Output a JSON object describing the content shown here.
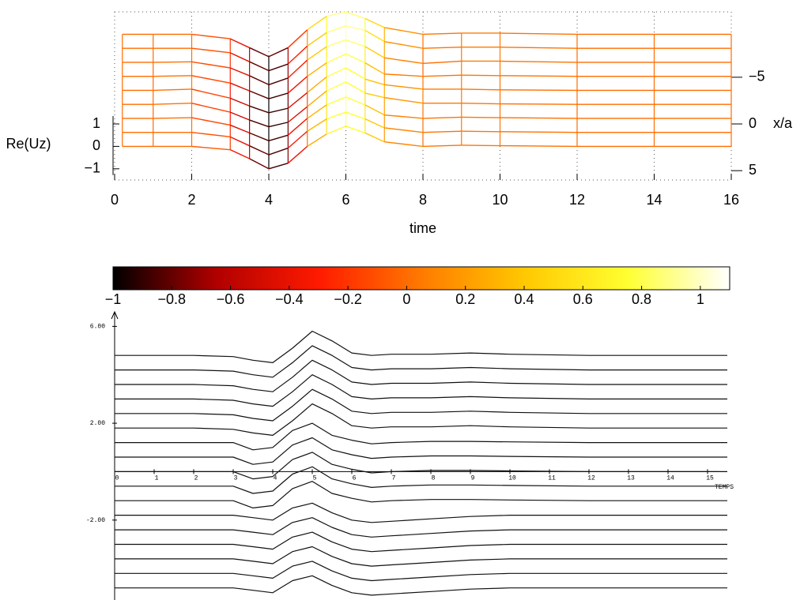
{
  "chart_data": [
    {
      "type": "waterfall",
      "ylabel": "Re(Uz)",
      "xlabel": "time",
      "y2label": "x/a",
      "x": [
        0.2,
        1,
        2,
        3,
        3.5,
        4,
        4.5,
        5,
        5.5,
        6,
        6.5,
        7,
        8,
        9,
        10,
        12,
        14,
        16
      ],
      "series": [
        {
          "xa": -7,
          "values": [
            0,
            0,
            0,
            -0.2,
            -0.6,
            -1.0,
            -0.6,
            0.2,
            0.8,
            1.0,
            0.7,
            0.3,
            0,
            0.05,
            0.05,
            0,
            0,
            0
          ]
        },
        {
          "xa": -5.5,
          "values": [
            0,
            0,
            0,
            -0.2,
            -0.6,
            -1.0,
            -0.7,
            0.1,
            0.7,
            1.0,
            0.8,
            0.3,
            0,
            0.05,
            0.05,
            0,
            0,
            0
          ]
        },
        {
          "xa": -4,
          "values": [
            0,
            0,
            0.02,
            -0.25,
            -0.6,
            -1.0,
            -0.7,
            0.1,
            0.7,
            1.0,
            0.7,
            0.2,
            -0.05,
            0.05,
            0.05,
            0,
            0,
            0
          ]
        },
        {
          "xa": -2.5,
          "values": [
            0,
            0,
            0.03,
            -0.3,
            -0.65,
            -1.0,
            -0.75,
            0,
            0.6,
            1.0,
            0.6,
            0.1,
            0,
            0.05,
            0.03,
            0,
            0,
            0
          ]
        },
        {
          "xa": -1,
          "values": [
            0,
            0,
            0.05,
            -0.35,
            -0.7,
            -1.0,
            -0.8,
            -0.1,
            0.6,
            1.0,
            0.5,
            0.25,
            0.05,
            0.05,
            0.02,
            0,
            0,
            0
          ]
        },
        {
          "xa": 0.5,
          "values": [
            0,
            0,
            0.05,
            -0.35,
            -0.7,
            -1.0,
            -0.8,
            -0.1,
            0.6,
            1.0,
            0.5,
            0.3,
            0.05,
            0.05,
            0.02,
            0,
            0,
            0
          ]
        },
        {
          "xa": 2,
          "values": [
            0,
            0,
            0.03,
            -0.3,
            -0.65,
            -1.0,
            -0.75,
            0,
            0.6,
            0.95,
            0.6,
            0.15,
            0,
            0.05,
            0.03,
            0,
            0,
            0
          ]
        },
        {
          "xa": 3.5,
          "values": [
            0,
            0,
            0,
            -0.2,
            -0.6,
            -1.0,
            -0.7,
            0.05,
            0.6,
            0.9,
            0.6,
            0.2,
            0,
            0.05,
            0.03,
            0,
            0,
            0
          ]
        },
        {
          "xa": 5,
          "values": [
            0,
            0,
            0,
            -0.15,
            -0.55,
            -1.0,
            -0.75,
            0,
            0.55,
            0.9,
            0.6,
            0.2,
            0,
            0.05,
            0.03,
            0,
            0,
            0
          ]
        }
      ],
      "xlim": [
        0,
        16
      ],
      "xticks": [
        0,
        2,
        4,
        6,
        8,
        10,
        12,
        14,
        16
      ],
      "ylim": [
        -1.5,
        6
      ],
      "yticks": [
        1,
        0,
        {
          "value": -1,
          "label": "−1"
        }
      ],
      "y2lim": [
        6,
        -12
      ],
      "y2ticks": [
        {
          "value": -5,
          "label": "−5"
        },
        0,
        5
      ],
      "grid": true,
      "colorbar": {
        "clim": [
          -1,
          1.1
        ],
        "colormap": [
          "#000000",
          "#b00000",
          "#ff1a00",
          "#ff7a00",
          "#ffc800",
          "#ffff30",
          "#ffffff"
        ],
        "ticks": [
          {
            "value": -1,
            "label": "−1"
          },
          {
            "value": -0.8,
            "label": "−0.8"
          },
          {
            "value": -0.6,
            "label": "−0.6"
          },
          {
            "value": -0.4,
            "label": "−0.4"
          },
          {
            "value": -0.2,
            "label": "−0.2"
          },
          0,
          0.2,
          0.4,
          0.6,
          0.8,
          1
        ]
      }
    },
    {
      "type": "line",
      "xlabel": "TEMPS",
      "x": [
        0,
        1,
        2,
        3,
        3.5,
        4,
        4.5,
        5,
        5.5,
        6,
        6.5,
        7,
        8,
        9,
        10,
        12,
        15.5
      ],
      "series": [
        {
          "values": [
            4.8,
            4.8,
            4.8,
            4.75,
            4.6,
            4.5,
            5.1,
            5.8,
            5.4,
            4.9,
            4.8,
            4.85,
            4.85,
            4.9,
            4.85,
            4.8,
            4.8
          ]
        },
        {
          "values": [
            4.2,
            4.2,
            4.2,
            4.15,
            4.0,
            3.9,
            4.5,
            5.2,
            4.8,
            4.3,
            4.2,
            4.25,
            4.25,
            4.3,
            4.25,
            4.2,
            4.2
          ]
        },
        {
          "values": [
            3.6,
            3.6,
            3.6,
            3.55,
            3.4,
            3.3,
            3.9,
            4.6,
            4.2,
            3.7,
            3.6,
            3.65,
            3.65,
            3.7,
            3.65,
            3.6,
            3.6
          ]
        },
        {
          "values": [
            3,
            3,
            3,
            2.95,
            2.8,
            2.7,
            3.3,
            4.0,
            3.6,
            3.1,
            3,
            3.05,
            3.05,
            3.1,
            3.05,
            3,
            3
          ]
        },
        {
          "values": [
            2.4,
            2.4,
            2.4,
            2.35,
            2.2,
            2.1,
            2.7,
            3.4,
            3.0,
            2.5,
            2.4,
            2.45,
            2.45,
            2.5,
            2.45,
            2.4,
            2.4
          ]
        },
        {
          "values": [
            1.8,
            1.8,
            1.8,
            1.75,
            1.6,
            1.5,
            2.1,
            2.8,
            2.4,
            1.9,
            1.8,
            1.85,
            1.85,
            1.9,
            1.85,
            1.8,
            1.8
          ]
        },
        {
          "values": [
            1.2,
            1.2,
            1.2,
            1.2,
            0.9,
            1.0,
            1.7,
            2.0,
            1.5,
            1.3,
            1.15,
            1.2,
            1.25,
            1.25,
            1.23,
            1.2,
            1.2
          ]
        },
        {
          "values": [
            0.6,
            0.6,
            0.6,
            0.6,
            0.3,
            0.4,
            1.1,
            1.4,
            0.9,
            0.7,
            0.55,
            0.6,
            0.65,
            0.65,
            0.63,
            0.6,
            0.6
          ]
        },
        {
          "values": [
            0,
            0,
            0,
            0,
            -0.3,
            -0.2,
            0.5,
            0.8,
            0.3,
            0.1,
            -0.05,
            0,
            0.05,
            0.05,
            0.03,
            0,
            0
          ]
        },
        {
          "values": [
            -0.6,
            -0.6,
            -0.6,
            -0.6,
            -0.9,
            -0.8,
            -0.1,
            0.2,
            -0.3,
            -0.5,
            -0.65,
            -0.6,
            -0.55,
            -0.55,
            -0.57,
            -0.6,
            -0.6
          ]
        },
        {
          "values": [
            -1.2,
            -1.2,
            -1.2,
            -1.2,
            -1.5,
            -1.4,
            -0.7,
            -0.4,
            -0.9,
            -1.1,
            -1.25,
            -1.2,
            -1.15,
            -1.15,
            -1.17,
            -1.2,
            -1.2
          ]
        },
        {
          "values": [
            -1.8,
            -1.8,
            -1.8,
            -1.8,
            -1.9,
            -2.0,
            -1.5,
            -1.3,
            -1.7,
            -2.0,
            -2.1,
            -2.05,
            -1.95,
            -1.85,
            -1.8,
            -1.8,
            -1.8
          ]
        },
        {
          "values": [
            -2.4,
            -2.4,
            -2.4,
            -2.4,
            -2.5,
            -2.6,
            -2.1,
            -1.9,
            -2.3,
            -2.6,
            -2.7,
            -2.65,
            -2.55,
            -2.45,
            -2.4,
            -2.4,
            -2.4
          ]
        },
        {
          "values": [
            -3,
            -3,
            -3,
            -3,
            -3.1,
            -3.2,
            -2.7,
            -2.5,
            -2.9,
            -3.2,
            -3.3,
            -3.25,
            -3.15,
            -3.05,
            -3,
            -3,
            -3
          ]
        },
        {
          "values": [
            -3.6,
            -3.6,
            -3.6,
            -3.6,
            -3.7,
            -3.8,
            -3.3,
            -3.1,
            -3.5,
            -3.8,
            -3.9,
            -3.85,
            -3.75,
            -3.65,
            -3.6,
            -3.6,
            -3.6
          ]
        },
        {
          "values": [
            -4.2,
            -4.2,
            -4.2,
            -4.2,
            -4.3,
            -4.4,
            -3.9,
            -3.7,
            -4.1,
            -4.4,
            -4.5,
            -4.45,
            -4.35,
            -4.25,
            -4.2,
            -4.2,
            -4.2
          ]
        },
        {
          "values": [
            -4.8,
            -4.8,
            -4.8,
            -4.8,
            -4.9,
            -5.0,
            -4.5,
            -4.3,
            -4.7,
            -5.0,
            -5.1,
            -5.05,
            -4.95,
            -4.85,
            -4.8,
            -4.8,
            -4.8
          ]
        }
      ],
      "xlim": [
        0,
        15.5
      ],
      "xticks": [
        0,
        1,
        2,
        3,
        4,
        5,
        6,
        7,
        8,
        9,
        10,
        11,
        12,
        13,
        14,
        15
      ],
      "ylim": [
        -5.3,
        6.6
      ],
      "yticks": [
        {
          "value": 6,
          "label": "6.00"
        },
        {
          "value": 2,
          "label": "2.00"
        },
        {
          "value": -2,
          "label": "-2.00"
        }
      ]
    }
  ]
}
